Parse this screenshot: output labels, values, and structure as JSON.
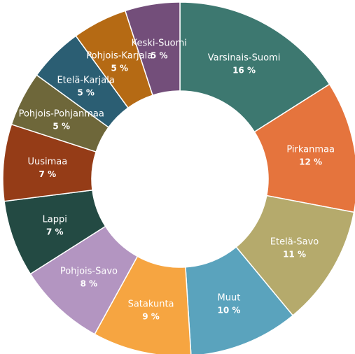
{
  "chart_data": {
    "type": "pie",
    "donut": true,
    "unit": "%",
    "slices": [
      {
        "label": "Varsinais-Suomi",
        "value": 16,
        "display": "16 %",
        "color": "#3d7870"
      },
      {
        "label": "Pirkanmaa",
        "value": 12,
        "display": "12 %",
        "color": "#e5743d"
      },
      {
        "label": "Etelä-Savo",
        "value": 11,
        "display": "11 %",
        "color": "#b5aa6c"
      },
      {
        "label": "Muut",
        "value": 10,
        "display": "10 %",
        "color": "#5aa3bd"
      },
      {
        "label": "Satakunta",
        "value": 9,
        "display": "9 %",
        "color": "#f6a541"
      },
      {
        "label": "Pohjois-Savo",
        "value": 8,
        "display": "8 %",
        "color": "#b395c1"
      },
      {
        "label": "Lappi",
        "value": 7,
        "display": "7 %",
        "color": "#234a43"
      },
      {
        "label": "Uusimaa",
        "value": 7,
        "display": "7 %",
        "color": "#953c17"
      },
      {
        "label": "Pohjois-Pohjanmaa",
        "value": 5,
        "display": "5 %",
        "color": "#6e673a"
      },
      {
        "label": "Etelä-Karjala",
        "value": 5,
        "display": "5 %",
        "color": "#2b5e73"
      },
      {
        "label": "Pohjois-Karjala",
        "value": 5,
        "display": "5 %",
        "color": "#b56a14"
      },
      {
        "label": "Keski-Suomi",
        "value": 5,
        "display": "5 %",
        "color": "#734e7a"
      }
    ]
  }
}
